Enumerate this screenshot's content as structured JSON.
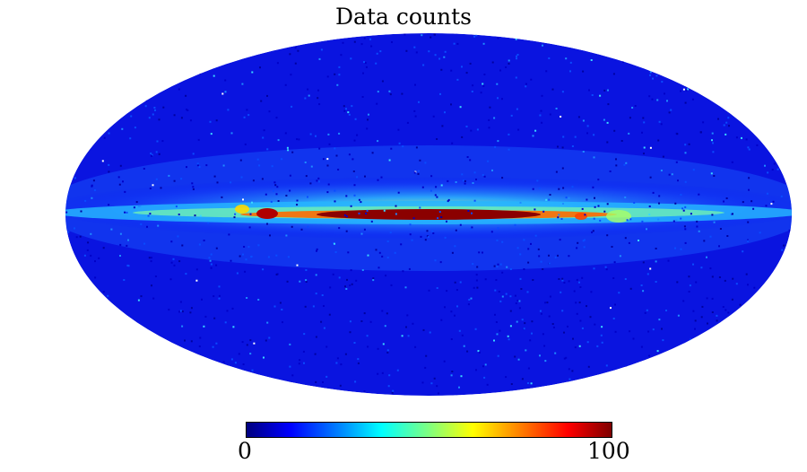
{
  "map": {
    "title": "Data counts",
    "projection": "mollweide",
    "colormap": "jet",
    "colorbar": {
      "min_label": "0",
      "max_label": "100"
    },
    "colors": {
      "background": "#ffffff",
      "low": "#00007f",
      "high": "#7f0000"
    }
  }
}
